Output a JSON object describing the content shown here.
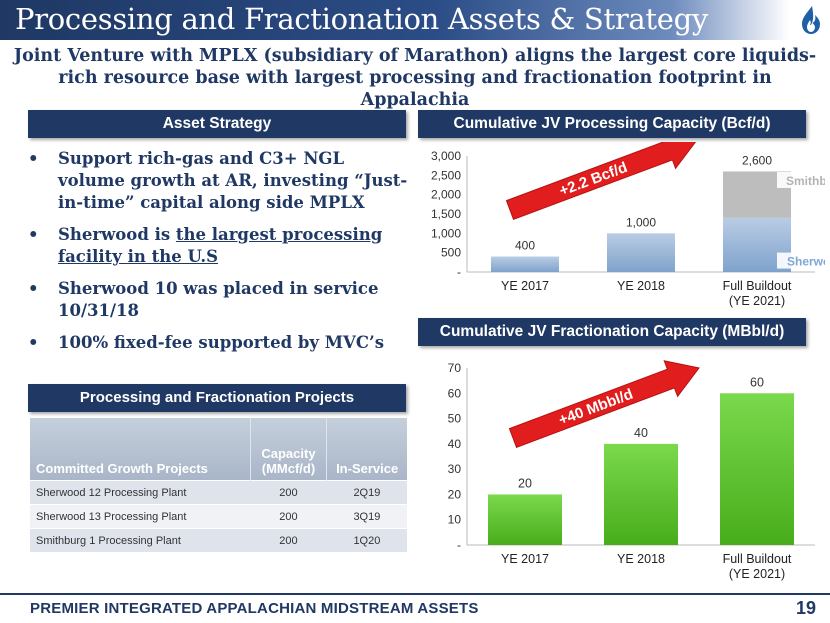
{
  "title": "Processing and Fractionation Assets & Strategy",
  "subtitle": "Joint Venture with MPLX (subsidiary of Marathon) aligns the largest core liquids-rich resource base with largest processing and fractionation footprint in Appalachia",
  "asset_strategy": {
    "header": "Asset Strategy",
    "bullets": [
      {
        "text": "Support rich-gas and C3+ NGL volume growth at AR, investing “Just-in-time” capital along side MPLX"
      },
      {
        "prefix": "Sherwood is ",
        "underlined": "the largest processing facility in the U.S"
      },
      {
        "text": "Sherwood 10 was placed in service 10/31/18"
      },
      {
        "text": "100% fixed-fee supported by MVC’s"
      }
    ],
    "bullet_char": "•"
  },
  "projects": {
    "header": "Processing and Fractionation Projects",
    "columns": [
      "Committed Growth Projects",
      "Capacity (MMcf/d)",
      "In-Service"
    ],
    "rows": [
      [
        "Sherwood 12 Processing Plant",
        "200",
        "2Q19"
      ],
      [
        "Sherwood 13 Processing Plant",
        "200",
        "3Q19"
      ],
      [
        "Smithburg 1 Processing Plant",
        "200",
        "1Q20"
      ]
    ]
  },
  "colors": {
    "navy": "#1f3864",
    "blue_bar": "#9fb8d6",
    "gray_bar": "#bdbdbd",
    "green_bar": "#5dc228",
    "arrow_red": "#e21d1d"
  },
  "chart_data": [
    {
      "type": "bar",
      "title": "Cumulative JV Processing Capacity (Bcf/d)",
      "categories": [
        "YE 2017",
        "YE 2018",
        "Full Buildout (YE 2021)"
      ],
      "category_lines": [
        [
          "YE 2017"
        ],
        [
          "YE 2018"
        ],
        [
          "Full Buildout",
          "(YE 2021)"
        ]
      ],
      "series": [
        {
          "name": "Sherwood",
          "values": [
            400,
            1000,
            1400
          ]
        },
        {
          "name": "Smithburg",
          "values": [
            0,
            0,
            1200
          ]
        }
      ],
      "data_labels": [
        "400",
        "1,000",
        "2,600"
      ],
      "yticks": [
        "-",
        "500",
        "1,000",
        "1,500",
        "2,000",
        "2,500",
        "3,000"
      ],
      "ylim": [
        0,
        3000
      ],
      "arrow_label": "+2.2 Bcf/d",
      "stacked": true
    },
    {
      "type": "bar",
      "title": "Cumulative JV Fractionation Capacity (MBbl/d)",
      "categories": [
        "YE 2017",
        "YE 2018",
        "Full Buildout (YE 2021)"
      ],
      "category_lines": [
        [
          "YE 2017"
        ],
        [
          "YE 2018"
        ],
        [
          "Full Buildout",
          "(YE 2021)"
        ]
      ],
      "values": [
        20,
        40,
        60
      ],
      "data_labels": [
        "20",
        "40",
        "60"
      ],
      "yticks": [
        "-",
        "10",
        "20",
        "30",
        "40",
        "50",
        "60",
        "70"
      ],
      "ylim": [
        0,
        70
      ],
      "arrow_label": "+40 Mbbl/d"
    }
  ],
  "footer": {
    "text": "PREMIER INTEGRATED APPALACHIAN MIDSTREAM ASSETS",
    "page": "19"
  }
}
